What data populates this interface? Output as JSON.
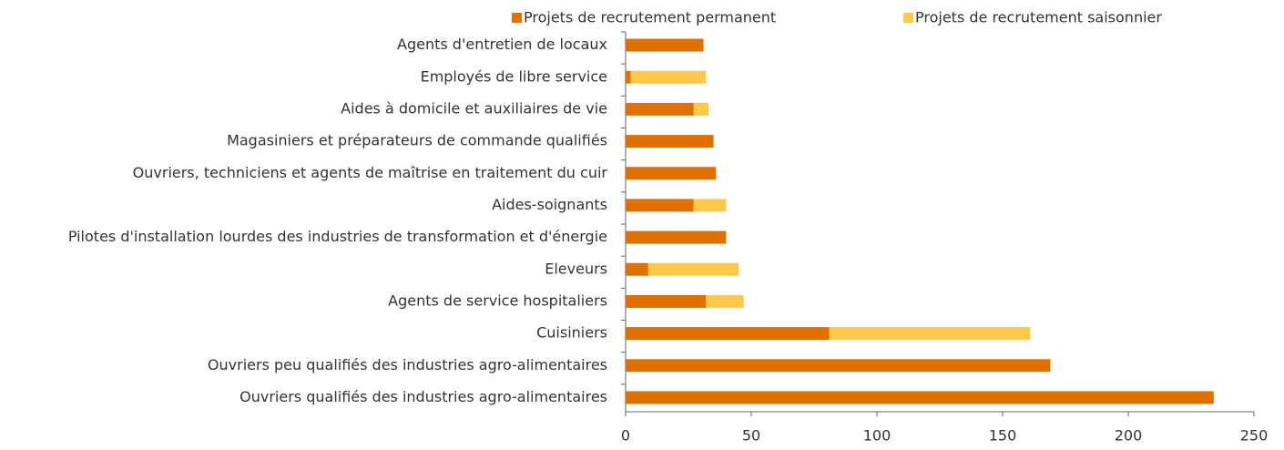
{
  "chart_data": {
    "type": "stacked_barh",
    "categories": [
      "Agents d'entretien de locaux",
      "Employés de libre service",
      "Aides à domicile et auxiliaires de vie",
      "Magasiniers et préparateurs de commande qualifiés",
      "Ouvriers, techniciens et agents de maîtrise en traitement du cuir",
      "Aides-soignants",
      "Pilotes d'installation lourdes des industries de transformation et d'énergie",
      "Eleveurs",
      "Agents de service hospitaliers",
      "Cuisiniers",
      "Ouvriers peu qualifiés des industries agro-alimentaires",
      "Ouvriers qualifiés des industries agro-alimentaires"
    ],
    "series": [
      {
        "name": "Projets de recrutement permanent",
        "color": "#e07000",
        "values": [
          31,
          2,
          27,
          35,
          36,
          27,
          40,
          9,
          32,
          81,
          169,
          234
        ]
      },
      {
        "name": "Projets de recrutement saisonnier",
        "color": "#fcc94a",
        "values": [
          0,
          30,
          6,
          0,
          0,
          13,
          0,
          36,
          15,
          80,
          0,
          0
        ]
      }
    ],
    "xlim": [
      0,
      250
    ],
    "xticks": [
      0,
      50,
      100,
      150,
      200,
      250
    ],
    "legend": "top"
  }
}
